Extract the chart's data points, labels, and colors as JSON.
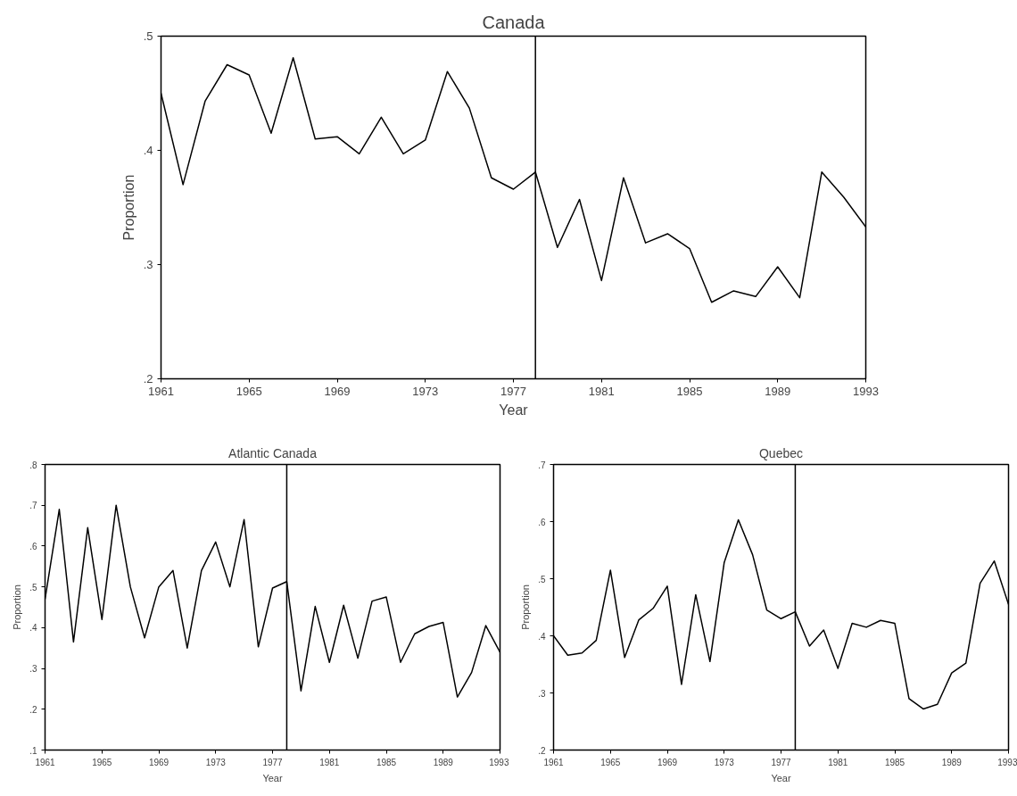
{
  "chart_data": [
    {
      "type": "line",
      "title": "Canada",
      "xlabel": "Year",
      "ylabel": "Proportion",
      "grid": false,
      "marker": "none",
      "line_style": "solid",
      "x": [
        1961,
        1962,
        1963,
        1964,
        1965,
        1966,
        1967,
        1968,
        1969,
        1970,
        1971,
        1972,
        1973,
        1974,
        1975,
        1976,
        1977,
        1978,
        1979,
        1980,
        1981,
        1982,
        1983,
        1984,
        1985,
        1986,
        1987,
        1988,
        1989,
        1990,
        1991,
        1992,
        1993
      ],
      "series": [
        {
          "color": "#000000",
          "values": [
            0.45,
            0.37,
            0.443,
            0.475,
            0.466,
            0.415,
            0.481,
            0.41,
            0.412,
            0.397,
            0.429,
            0.397,
            0.409,
            0.469,
            0.437,
            0.376,
            0.366,
            0.381,
            0.315,
            0.357,
            0.286,
            0.376,
            0.319,
            0.327,
            0.314,
            0.267,
            0.277,
            0.272,
            0.298,
            0.271,
            0.381,
            0.359,
            0.333
          ]
        }
      ],
      "xlim": [
        1961,
        1993
      ],
      "xticks": [
        1961,
        1965,
        1969,
        1973,
        1977,
        1981,
        1985,
        1989,
        1993
      ],
      "ylim": [
        0.2,
        0.5
      ],
      "yticks": [
        {
          "value": 0.2,
          "label": ".2"
        },
        {
          "value": 0.3,
          "label": ".3"
        },
        {
          "value": 0.4,
          "label": ".4"
        },
        {
          "value": 0.5,
          "label": ".5"
        }
      ],
      "ref_lines": [
        {
          "axis": "x",
          "value": 1978,
          "color": "#000000"
        }
      ]
    },
    {
      "type": "line",
      "title": "Atlantic Canada",
      "xlabel": "Year",
      "ylabel": "Proportion",
      "grid": false,
      "marker": "none",
      "line_style": "solid",
      "x": [
        1961,
        1962,
        1963,
        1964,
        1965,
        1966,
        1967,
        1968,
        1969,
        1970,
        1971,
        1972,
        1973,
        1974,
        1975,
        1976,
        1977,
        1978,
        1979,
        1980,
        1981,
        1982,
        1983,
        1984,
        1985,
        1986,
        1987,
        1988,
        1989,
        1990,
        1991,
        1992,
        1993
      ],
      "series": [
        {
          "color": "#000000",
          "values": [
            0.47,
            0.69,
            0.365,
            0.645,
            0.42,
            0.7,
            0.5,
            0.375,
            0.5,
            0.54,
            0.35,
            0.54,
            0.61,
            0.5,
            0.665,
            0.353,
            0.497,
            0.513,
            0.245,
            0.452,
            0.315,
            0.455,
            0.325,
            0.465,
            0.475,
            0.315,
            0.385,
            0.403,
            0.413,
            0.23,
            0.29,
            0.405,
            0.34
          ]
        }
      ],
      "xlim": [
        1961,
        1993
      ],
      "xticks": [
        1961,
        1965,
        1969,
        1973,
        1977,
        1981,
        1985,
        1989,
        1993
      ],
      "ylim": [
        0.1,
        0.8
      ],
      "yticks": [
        {
          "value": 0.1,
          "label": ".1"
        },
        {
          "value": 0.2,
          "label": ".2"
        },
        {
          "value": 0.3,
          "label": ".3"
        },
        {
          "value": 0.4,
          "label": ".4"
        },
        {
          "value": 0.5,
          "label": ".5"
        },
        {
          "value": 0.6,
          "label": ".6"
        },
        {
          "value": 0.7,
          "label": ".7"
        },
        {
          "value": 0.8,
          "label": ".8"
        }
      ],
      "ref_lines": [
        {
          "axis": "x",
          "value": 1978,
          "color": "#000000"
        }
      ]
    },
    {
      "type": "line",
      "title": "Quebec",
      "xlabel": "Year",
      "ylabel": "Proportion",
      "grid": false,
      "marker": "none",
      "line_style": "solid",
      "x": [
        1961,
        1962,
        1963,
        1964,
        1965,
        1966,
        1967,
        1968,
        1969,
        1970,
        1971,
        1972,
        1973,
        1974,
        1975,
        1976,
        1977,
        1978,
        1979,
        1980,
        1981,
        1982,
        1983,
        1984,
        1985,
        1986,
        1987,
        1988,
        1989,
        1990,
        1991,
        1992,
        1993
      ],
      "series": [
        {
          "color": "#000000",
          "values": [
            0.4,
            0.366,
            0.37,
            0.392,
            0.515,
            0.362,
            0.428,
            0.448,
            0.487,
            0.315,
            0.472,
            0.355,
            0.528,
            0.603,
            0.542,
            0.445,
            0.43,
            0.442,
            0.382,
            0.41,
            0.343,
            0.422,
            0.415,
            0.427,
            0.422,
            0.29,
            0.272,
            0.28,
            0.335,
            0.352,
            0.492,
            0.531,
            0.455
          ]
        }
      ],
      "xlim": [
        1961,
        1993
      ],
      "xticks": [
        1961,
        1965,
        1969,
        1973,
        1977,
        1981,
        1985,
        1989,
        1993
      ],
      "ylim": [
        0.2,
        0.7
      ],
      "yticks": [
        {
          "value": 0.2,
          "label": ".2"
        },
        {
          "value": 0.3,
          "label": ".3"
        },
        {
          "value": 0.4,
          "label": ".4"
        },
        {
          "value": 0.5,
          "label": ".5"
        },
        {
          "value": 0.6,
          "label": ".6"
        },
        {
          "value": 0.7,
          "label": ".7"
        }
      ],
      "ref_lines": [
        {
          "axis": "x",
          "value": 1978,
          "color": "#000000"
        }
      ]
    }
  ]
}
